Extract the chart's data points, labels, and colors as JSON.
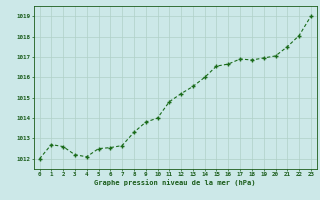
{
  "x": [
    0,
    1,
    2,
    3,
    4,
    5,
    6,
    7,
    8,
    9,
    10,
    11,
    12,
    13,
    14,
    15,
    16,
    17,
    18,
    19,
    20,
    21,
    22,
    23
  ],
  "y": [
    1012.0,
    1012.7,
    1012.6,
    1012.2,
    1012.1,
    1012.5,
    1012.55,
    1012.65,
    1013.3,
    1013.8,
    1014.0,
    1014.8,
    1015.2,
    1015.55,
    1016.0,
    1016.55,
    1016.65,
    1016.9,
    1016.85,
    1016.95,
    1017.05,
    1017.5,
    1018.05,
    1019.0
  ],
  "line_color": "#1a6b1a",
  "marker_color": "#1a6b1a",
  "bg_color": "#cce8e8",
  "grid_color": "#b0d0c8",
  "title": "Graphe pression niveau de la mer (hPa)",
  "title_color": "#1a5c1a",
  "tick_color": "#1a5c1a",
  "ylim_min": 1011.5,
  "ylim_max": 1019.5,
  "xlim_min": -0.5,
  "xlim_max": 23.5,
  "yticks": [
    1012,
    1013,
    1014,
    1015,
    1016,
    1017,
    1018,
    1019
  ],
  "xticks": [
    0,
    1,
    2,
    3,
    4,
    5,
    6,
    7,
    8,
    9,
    10,
    11,
    12,
    13,
    14,
    15,
    16,
    17,
    18,
    19,
    20,
    21,
    22,
    23
  ]
}
